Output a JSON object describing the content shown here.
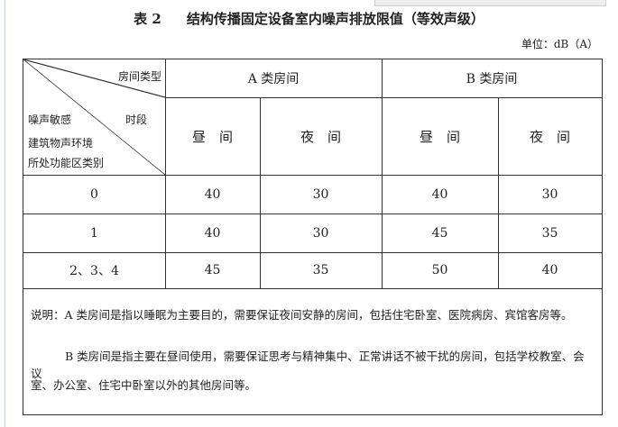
{
  "title": {
    "number": "表 2",
    "text": "结构传播固定设备室内噪声排放限值（等效声级）"
  },
  "unit": "单位：dB（A）",
  "header": {
    "corner_top": "房间类型",
    "corner_mid": "时段",
    "corner_rows": [
      "噪声敏感",
      "建筑物声环境",
      "所处功能区类别"
    ],
    "groups": [
      "A 类房间",
      "B 类房间"
    ],
    "periods": [
      "昼　间",
      "夜　间",
      "昼　间",
      "夜　间"
    ]
  },
  "rows": [
    {
      "label": "0",
      "values": [
        "40",
        "30",
        "40",
        "30"
      ]
    },
    {
      "label": "1",
      "values": [
        "40",
        "30",
        "45",
        "35"
      ]
    },
    {
      "label": "2、3、4",
      "values": [
        "45",
        "35",
        "50",
        "40"
      ]
    }
  ],
  "notes": [
    "说明：A 类房间是指以睡眠为主要目的，需要保证夜间安静的房间，包括住宅卧室、医院病房、宾馆客房等。",
    "B 类房间是指主要在昼间使用，需要保证思考与精神集中、正常讲话不被干扰的房间，包括学校教室、会议",
    "室、办公室、住宅中卧室以外的其他房间等。"
  ]
}
